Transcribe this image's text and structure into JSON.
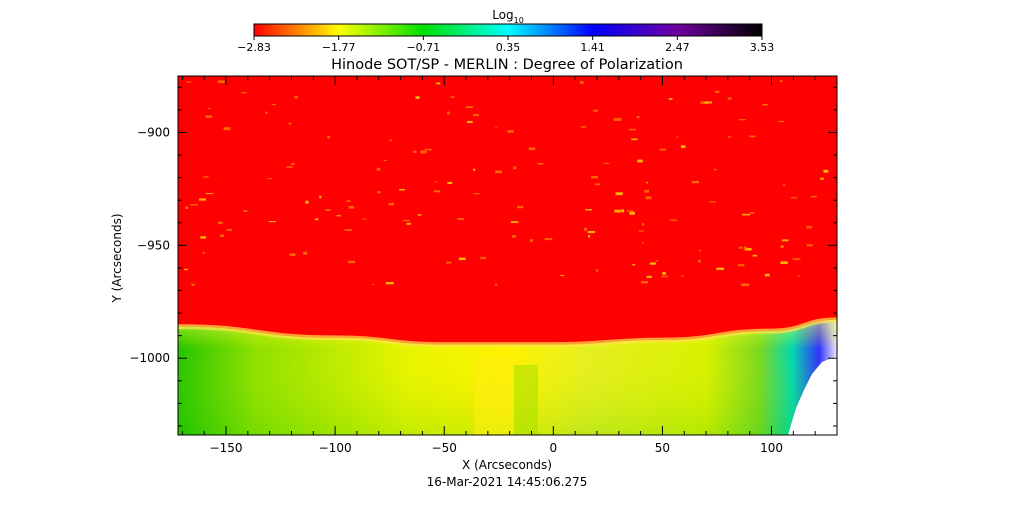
{
  "chart_data": {
    "type": "heatmap",
    "title": "Hinode SOT/SP - MERLIN : Degree of Polarization",
    "subtitle": "16-Mar-2021 14:45:06.275",
    "xlabel": "X (Arcseconds)",
    "ylabel": "Y (Arcseconds)",
    "xlim": [
      -172,
      130
    ],
    "ylim": [
      -1034,
      -875
    ],
    "x_ticks": [
      -150,
      -100,
      -50,
      0,
      50,
      100
    ],
    "x_tick_labels": [
      "−150",
      "−100",
      "−50",
      "0",
      "50",
      "100"
    ],
    "y_ticks": [
      -900,
      -950,
      -1000
    ],
    "y_tick_labels": [
      "−900",
      "−950",
      "−1000"
    ],
    "colorbar": {
      "label_base": "Log",
      "label_sub": "10",
      "min": -2.83,
      "max": 3.53,
      "tick_values": [
        -2.83,
        -1.77,
        -0.71,
        0.35,
        1.41,
        2.47,
        3.53
      ],
      "tick_labels": [
        "−2.83",
        "−1.77",
        "−0.71",
        "0.35",
        "1.41",
        "2.47",
        "3.53"
      ],
      "colors": [
        "#ff0000",
        "#ffff00",
        "#00e000",
        "#00ffff",
        "#0000ff",
        "#7000a0",
        "#000000"
      ]
    },
    "regions": {
      "disk_value": -2.83,
      "limb_value": -1.2,
      "offlimb_value": -0.9,
      "offlimb_edge_value": 0.5,
      "limb_y_at_x": {
        "x": [
          -172,
          -100,
          -50,
          0,
          50,
          100,
          130
        ],
        "y": [
          -986,
          -991,
          -994,
          -994,
          -992,
          -988,
          -983
        ]
      }
    }
  }
}
